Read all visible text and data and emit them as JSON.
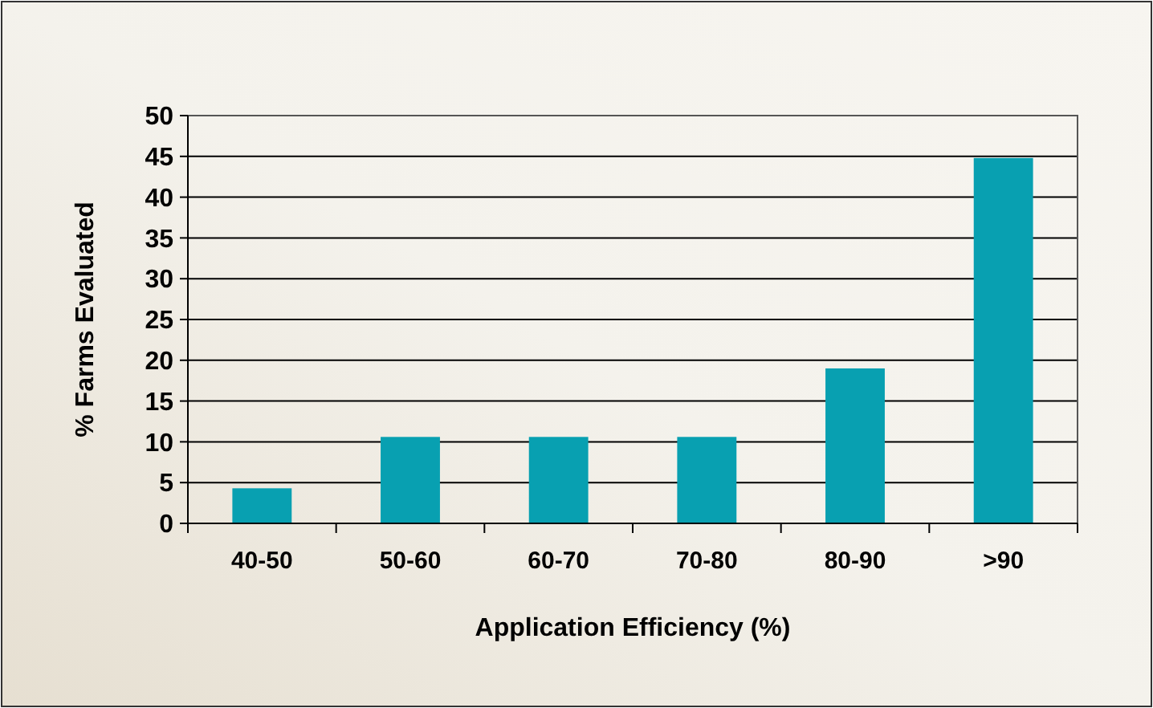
{
  "chart_data": {
    "type": "bar",
    "xlabel": "Application Efficiency (%)",
    "ylabel": "% Farms Evaluated",
    "categories": [
      "40-50",
      "50-60",
      "60-70",
      "70-80",
      "80-90",
      ">90"
    ],
    "values": [
      4.3,
      10.6,
      10.6,
      10.6,
      19,
      44.8
    ],
    "color": "#08a0b1",
    "ylim": [
      0,
      50
    ],
    "yticks": [
      0,
      5,
      10,
      15,
      20,
      25,
      30,
      35,
      40,
      45,
      50
    ],
    "grid": "y"
  }
}
